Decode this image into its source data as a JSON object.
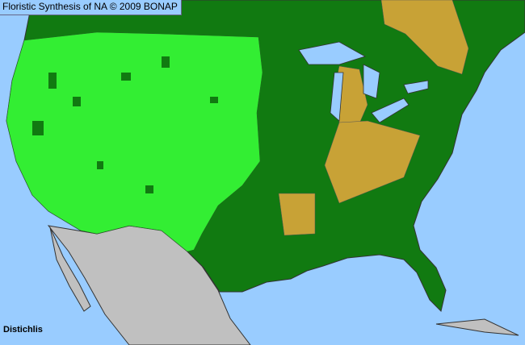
{
  "title": "Floristic Synthesis of NA © 2009 BONAP",
  "taxon": "Distichlis",
  "colors": {
    "water": "#99ccff",
    "present_native": "#008000",
    "present_not_rare": "#33ee33",
    "absent": "#c8a236",
    "outside_range": "#c0c0c0",
    "border": "#333333"
  }
}
